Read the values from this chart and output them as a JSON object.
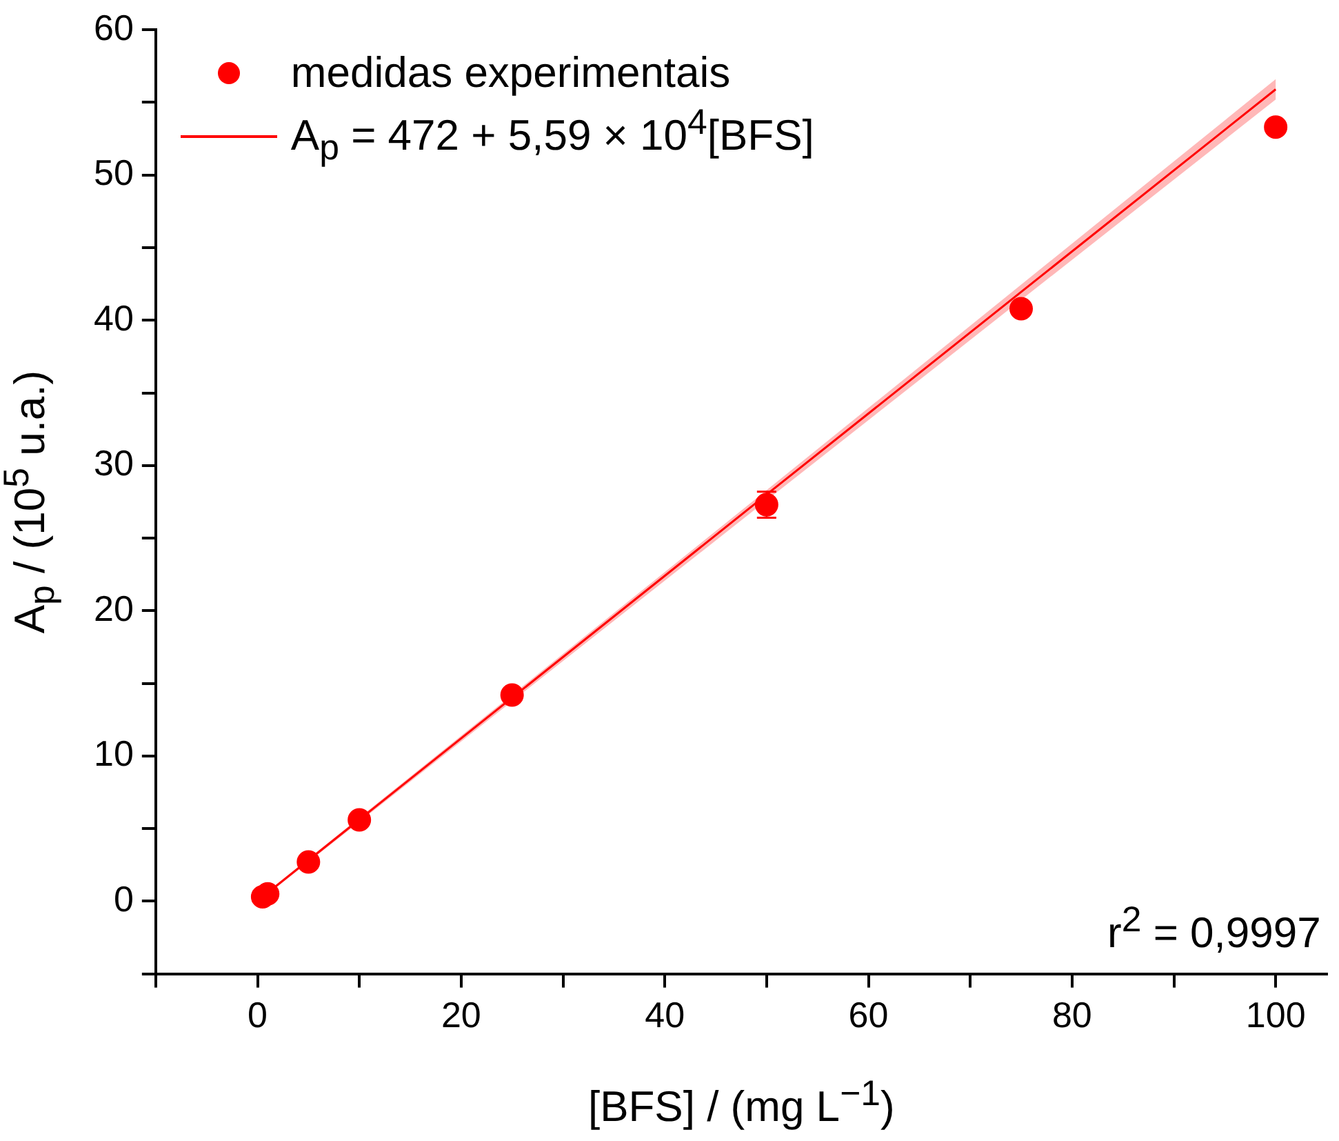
{
  "chart_data": {
    "type": "scatter",
    "xlabel": "[BFS] / (mg L$^{−1}$)",
    "ylabel": "A$_{p}$ / (10$^{5}$ u.a.)",
    "annotations": [
      "r$^{2}$ = 0,9997"
    ],
    "xlim": [
      -10,
      105
    ],
    "ylim": [
      -5,
      60
    ],
    "xticks": [
      {
        "value": -10,
        "label": null
      },
      0,
      {
        "value": 10,
        "label": null
      },
      20,
      {
        "value": 30,
        "label": null
      },
      40,
      {
        "value": 50,
        "label": null
      },
      60,
      {
        "value": 70,
        "label": null
      },
      80,
      {
        "value": 90,
        "label": null
      },
      100
    ],
    "yticks": [
      {
        "value": -5,
        "label": null
      },
      0,
      {
        "value": 5,
        "label": null
      },
      10,
      {
        "value": 15,
        "label": null
      },
      20,
      {
        "value": 25,
        "label": null
      },
      30,
      {
        "value": 35,
        "label": null
      },
      40,
      {
        "value": 45,
        "label": null
      },
      50,
      {
        "value": 55,
        "label": null
      },
      60
    ],
    "legend": "top left",
    "series": [
      {
        "name": "medidas experimentais",
        "marker": "circle",
        "color": "#ff0000",
        "x": [
          0.5,
          1,
          5,
          10,
          25,
          50,
          75,
          100
        ],
        "values": [
          0.3,
          0.5,
          2.7,
          5.6,
          14.2,
          27.3,
          40.8,
          53.3
        ],
        "errors": [
          null,
          null,
          null,
          null,
          null,
          0.9,
          null,
          null
        ]
      },
      {
        "name": "A$_{p}$ = 472 + 5,59 × 10$^{4}$[BFS]",
        "type": "line",
        "color": "#ff0000",
        "x": [
          0.5,
          50,
          100
        ],
        "marker": "none",
        "values": [
          0.3,
          28,
          55.9
        ],
        "lower": [
          0.2,
          27.6,
          55.2
        ],
        "upper": [
          0.4,
          28.3,
          56.6
        ]
      }
    ]
  }
}
